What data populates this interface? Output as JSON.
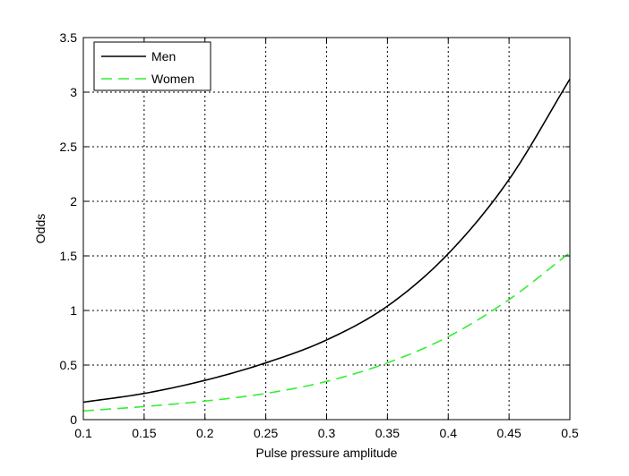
{
  "chart_data": {
    "type": "line",
    "title": "",
    "xlabel": "Pulse pressure amplitude",
    "ylabel": "Odds",
    "xlim": [
      0.1,
      0.5
    ],
    "ylim": [
      0,
      3.5
    ],
    "xticks": [
      0.1,
      0.15,
      0.2,
      0.25,
      0.3,
      0.35,
      0.4,
      0.45,
      0.5
    ],
    "xtick_labels": [
      "0.1",
      "0.15",
      "0.2",
      "0.25",
      "0.3",
      "0.35",
      "0.4",
      "0.45",
      "0.5"
    ],
    "yticks": [
      0,
      0.5,
      1,
      1.5,
      2,
      2.5,
      3,
      3.5
    ],
    "ytick_labels": [
      "0",
      "0.5",
      "1",
      "1.5",
      "2",
      "2.5",
      "3",
      "3.5"
    ],
    "grid": true,
    "legend_position": "top-left",
    "x": [
      0.1,
      0.15,
      0.2,
      0.25,
      0.3,
      0.35,
      0.4,
      0.45,
      0.5
    ],
    "series": [
      {
        "name": "Men",
        "color": "#000000",
        "dash": "solid",
        "values": [
          0.16,
          0.24,
          0.36,
          0.52,
          0.73,
          1.04,
          1.52,
          2.2,
          3.12
        ]
      },
      {
        "name": "Women",
        "color": "#33ee33",
        "dash": "dashed",
        "values": [
          0.08,
          0.12,
          0.17,
          0.24,
          0.35,
          0.52,
          0.76,
          1.1,
          1.53
        ]
      }
    ]
  }
}
